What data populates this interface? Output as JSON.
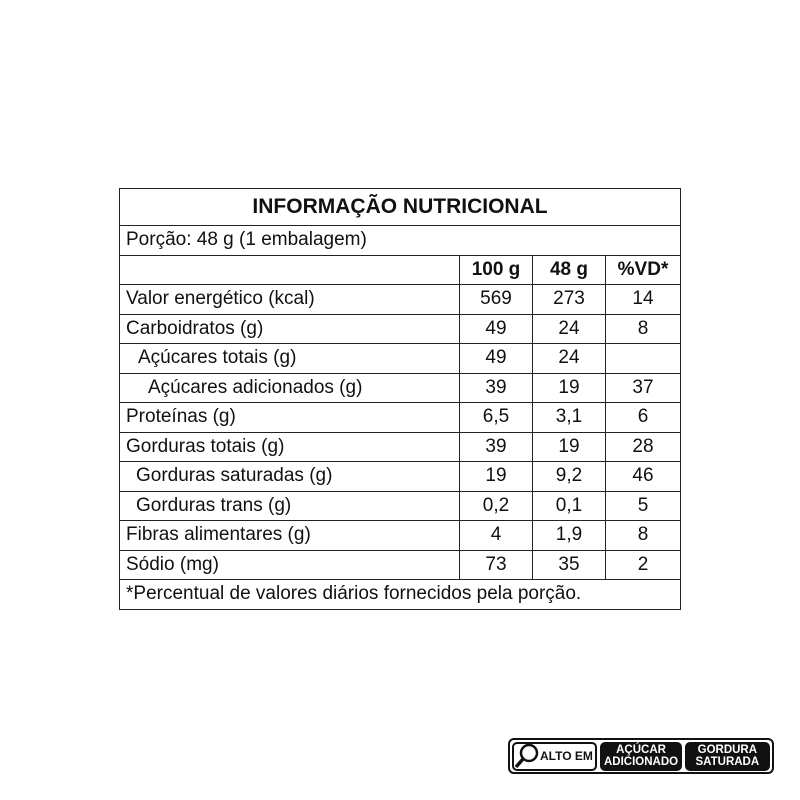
{
  "title": "INFORMAÇÃO NUTRICIONAL",
  "portion": "Porção: 48 g (1 embalagem)",
  "headers": [
    "100 g",
    "48 g",
    "%VD*"
  ],
  "rows": [
    {
      "label": "Valor energético (kcal)",
      "v100": "569",
      "v48": "273",
      "vd": "14",
      "indent": 0
    },
    {
      "label": "Carboidratos (g)",
      "v100": "49",
      "v48": "24",
      "vd": "8",
      "indent": 0
    },
    {
      "label": "Açúcares totais (g)",
      "v100": "49",
      "v48": "24",
      "vd": "",
      "indent": 1
    },
    {
      "label": "Açúcares adicionados (g)",
      "v100": "39",
      "v48": "19",
      "vd": "37",
      "indent": 2
    },
    {
      "label": "Proteínas (g)",
      "v100": "6,5",
      "v48": "3,1",
      "vd": "6",
      "indent": 0
    },
    {
      "label": "Gorduras totais (g)",
      "v100": "39",
      "v48": "19",
      "vd": "28",
      "indent": 0
    },
    {
      "label": "Gorduras saturadas (g)",
      "v100": "19",
      "v48": "9,2",
      "vd": "46",
      "indent": 3
    },
    {
      "label": "Gorduras trans (g)",
      "v100": "0,2",
      "v48": "0,1",
      "vd": "5",
      "indent": 3
    },
    {
      "label": "Fibras alimentares (g)",
      "v100": "4",
      "v48": "1,9",
      "vd": "8",
      "indent": 0
    },
    {
      "label": "Sódio (mg)",
      "v100": "73",
      "v48": "35",
      "vd": "2",
      "indent": 0
    }
  ],
  "footnote": "*Percentual de valores diários fornecidos pela porção.",
  "seal": {
    "alto_em": "ALTO EM",
    "sugar": [
      "AÇÚCAR",
      "ADICIONADO"
    ],
    "fat": [
      "GORDURA",
      "SATURADA"
    ],
    "icon": "magnifier-icon"
  }
}
